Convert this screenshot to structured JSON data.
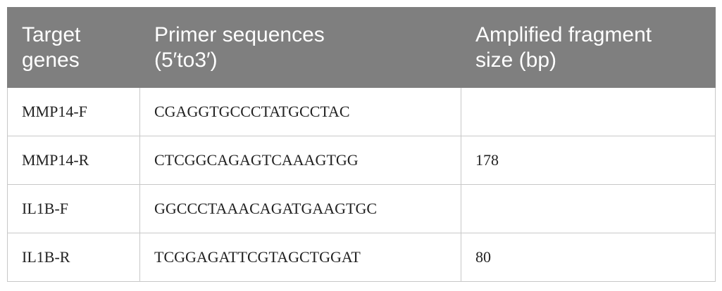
{
  "table": {
    "header": [
      "Target genes",
      "Primer sequences (5′to3′)",
      "Amplified frag­ment size (bp)"
    ],
    "rows": [
      [
        "MMP14-F",
        "CGAGGTGCCCTATGCCTAC",
        ""
      ],
      [
        "MMP14-R",
        "CTCGGCAGAGTCAAAGTGG",
        "178"
      ],
      [
        "IL1B-F",
        "GGCCCTAAACAGATGAAGTGC",
        ""
      ],
      [
        "IL1B-R",
        "TCGGAGATTCGTAGCTGGAT",
        "80"
      ]
    ]
  }
}
